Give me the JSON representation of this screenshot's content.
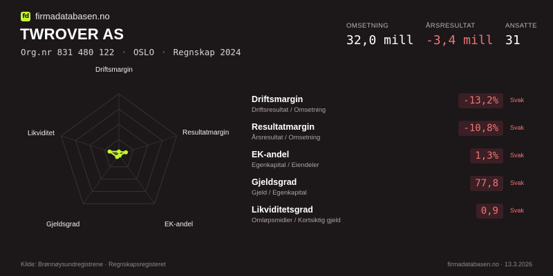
{
  "brand": {
    "logo_text": "fd",
    "name": "firmadatabasen.no",
    "accent": "#c6f432"
  },
  "company": {
    "name": "TWROVER AS",
    "org": "Org.nr 831 480 122",
    "city": "OSLO",
    "regnskap": "Regnskap 2024"
  },
  "kpis": {
    "omsetning": {
      "label": "OMSETNING",
      "value": "32,0 mill"
    },
    "arsresultat": {
      "label": "ÅRSRESULTAT",
      "value": "-3,4 mill",
      "color": "#f07575"
    },
    "ansatte": {
      "label": "ANSATTE",
      "value": "31"
    }
  },
  "radar": {
    "labels": [
      "Driftsmargin",
      "Resultatmargin",
      "EK-andel",
      "Gjeldsgrad",
      "Likviditet"
    ],
    "scores": [
      0.05,
      0.12,
      0.02,
      0.05,
      0.16
    ],
    "point_color": "#c6f432"
  },
  "metrics": [
    {
      "name": "Driftsmargin",
      "desc": "Driftsresultat / Omsetning",
      "value": "-13,2%",
      "rating": "Svak"
    },
    {
      "name": "Resultatmargin",
      "desc": "Årsresultat / Omsetning",
      "value": "-10,8%",
      "rating": "Svak"
    },
    {
      "name": "EK-andel",
      "desc": "Egenkapital / Eiendeler",
      "value": "1,3%",
      "rating": "Svak"
    },
    {
      "name": "Gjeldsgrad",
      "desc": "Gjeld / Egenkapital",
      "value": "77,8",
      "rating": "Svak"
    },
    {
      "name": "Likviditetsgrad",
      "desc": "Omløpsmidler / Kortsiktig gjeld",
      "value": "0,9",
      "rating": "Svak"
    }
  ],
  "footer": {
    "source": "Kilde: Brønnøysundregistrene · Regnskapsregisteret",
    "site_date": "firmadatabasen.no · 13.3.2026"
  }
}
